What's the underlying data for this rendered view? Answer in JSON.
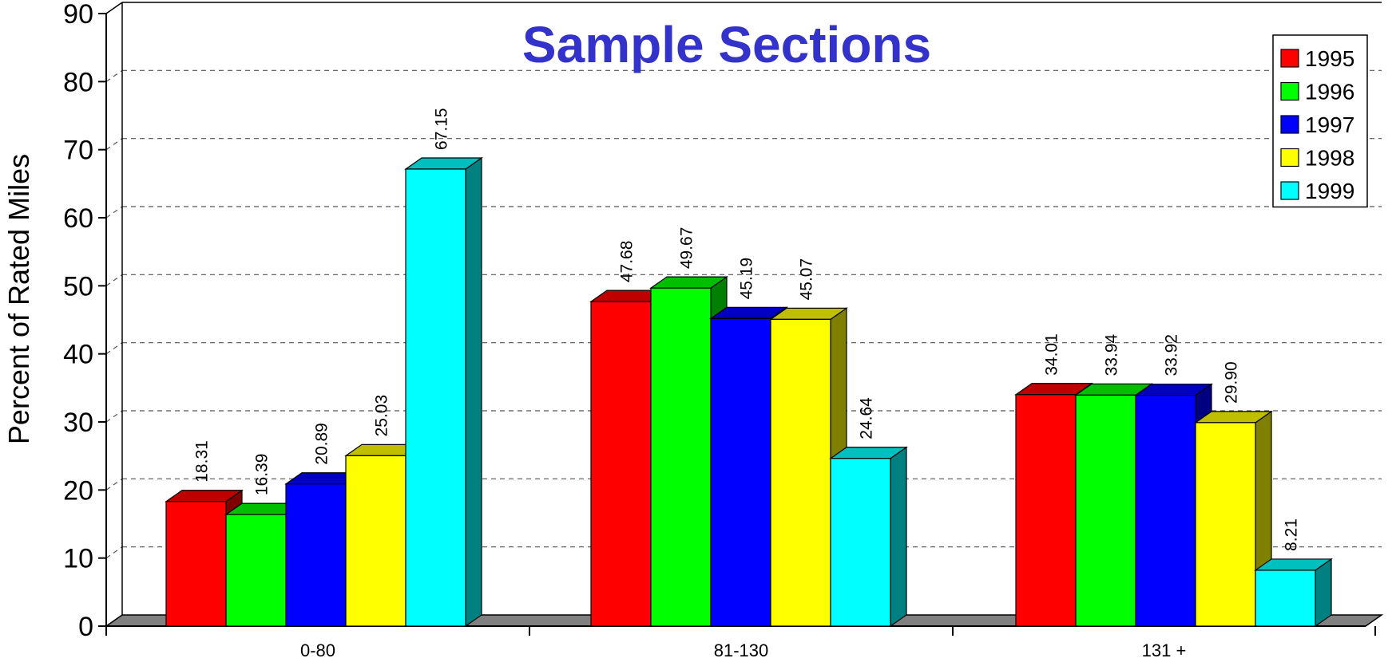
{
  "chart_data": {
    "type": "bar",
    "title": "Sample Sections",
    "xlabel": "",
    "ylabel": "Percent of Rated Miles",
    "categories": [
      "0-80",
      "81-130",
      "131 +"
    ],
    "ylim": [
      0,
      90
    ],
    "yticks": [
      0,
      10,
      20,
      30,
      40,
      50,
      60,
      70,
      80,
      90
    ],
    "grid": true,
    "legend_position": "top-right",
    "series": [
      {
        "name": "1995",
        "color": "#ff0000",
        "values": [
          18.31,
          47.68,
          34.01
        ],
        "labels": [
          "18.31",
          "47.68",
          "34.01"
        ]
      },
      {
        "name": "1996",
        "color": "#00ff00",
        "values": [
          16.39,
          49.67,
          33.94
        ],
        "labels": [
          "16.39",
          "49.67",
          "33.94"
        ]
      },
      {
        "name": "1997",
        "color": "#0000ff",
        "values": [
          20.89,
          45.19,
          33.92
        ],
        "labels": [
          "20.89",
          "45.19",
          "33.92"
        ]
      },
      {
        "name": "1998",
        "color": "#ffff00",
        "values": [
          25.03,
          45.07,
          29.9
        ],
        "labels": [
          "25.03",
          "45.07",
          "29.90"
        ]
      },
      {
        "name": "1999",
        "color": "#00ffff",
        "values": [
          67.15,
          24.64,
          8.21
        ],
        "labels": [
          "67.15",
          "24.64",
          "8.21"
        ]
      }
    ]
  }
}
